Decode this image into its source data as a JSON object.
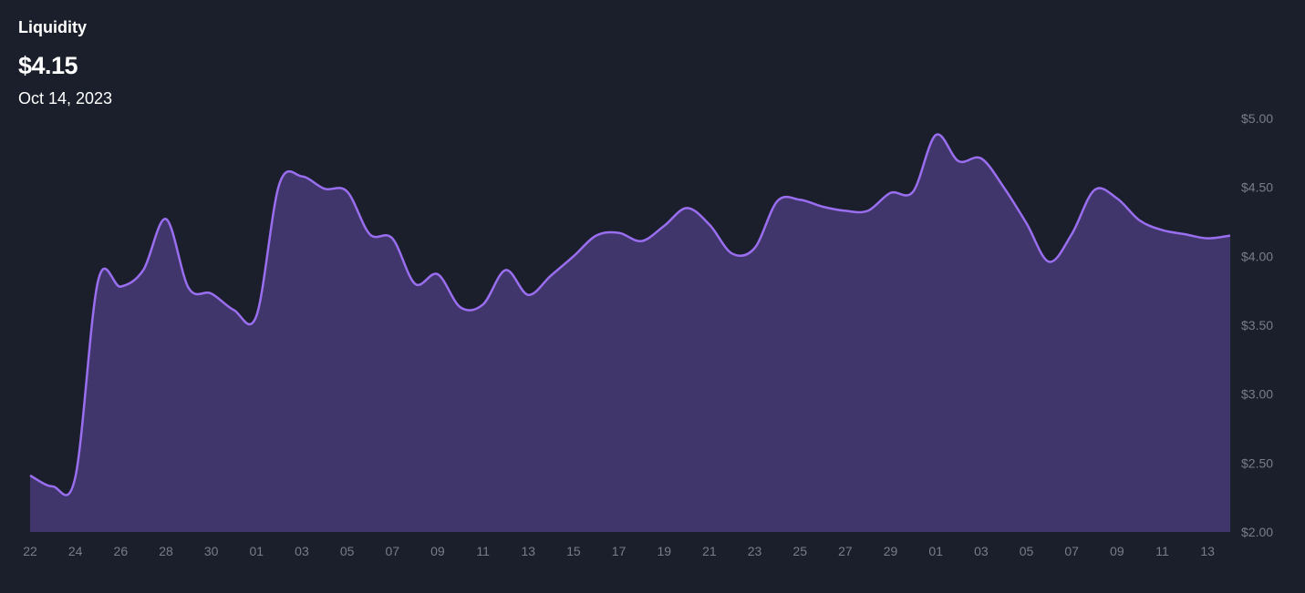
{
  "header": {
    "title": "Liquidity",
    "value": "$4.15",
    "date": "Oct 14, 2023"
  },
  "colors": {
    "background": "#1b1f2b",
    "line": "#9a6ef0",
    "area": "#41366b",
    "tick_text": "#7a7d88"
  },
  "chart_data": {
    "type": "area",
    "title": "Liquidity",
    "xlabel": "",
    "ylabel": "",
    "ylim": [
      2.0,
      5.0
    ],
    "grid": false,
    "y_ticks": [
      "$5.00",
      "$4.50",
      "$4.00",
      "$3.50",
      "$3.00",
      "$2.50",
      "$2.00"
    ],
    "y_tick_values": [
      5.0,
      4.5,
      4.0,
      3.5,
      3.0,
      2.5,
      2.0
    ],
    "x_ticks": [
      "22",
      "24",
      "26",
      "28",
      "30",
      "01",
      "03",
      "05",
      "07",
      "09",
      "11",
      "13",
      "15",
      "17",
      "19",
      "21",
      "23",
      "25",
      "27",
      "29",
      "01",
      "03",
      "05",
      "07",
      "09",
      "11",
      "13"
    ],
    "x_tick_dates": [
      "2023-08-22",
      "2023-08-24",
      "2023-08-26",
      "2023-08-28",
      "2023-08-30",
      "2023-09-01",
      "2023-09-03",
      "2023-09-05",
      "2023-09-07",
      "2023-09-09",
      "2023-09-11",
      "2023-09-13",
      "2023-09-15",
      "2023-09-17",
      "2023-09-19",
      "2023-09-21",
      "2023-09-23",
      "2023-09-25",
      "2023-09-27",
      "2023-09-29",
      "2023-10-01",
      "2023-10-03",
      "2023-10-05",
      "2023-10-07",
      "2023-10-09",
      "2023-10-11",
      "2023-10-13"
    ],
    "series": [
      {
        "x": [
          "2023-08-22",
          "2023-08-23",
          "2023-08-24",
          "2023-08-25",
          "2023-08-26",
          "2023-08-27",
          "2023-08-28",
          "2023-08-29",
          "2023-08-30",
          "2023-08-31",
          "2023-09-01",
          "2023-09-02",
          "2023-09-03",
          "2023-09-04",
          "2023-09-05",
          "2023-09-06",
          "2023-09-07",
          "2023-09-08",
          "2023-09-09",
          "2023-09-10",
          "2023-09-11",
          "2023-09-12",
          "2023-09-13",
          "2023-09-14",
          "2023-09-15",
          "2023-09-16",
          "2023-09-17",
          "2023-09-18",
          "2023-09-19",
          "2023-09-20",
          "2023-09-21",
          "2023-09-22",
          "2023-09-23",
          "2023-09-24",
          "2023-09-25",
          "2023-09-26",
          "2023-09-27",
          "2023-09-28",
          "2023-09-29",
          "2023-09-30",
          "2023-10-01",
          "2023-10-02",
          "2023-10-03",
          "2023-10-04",
          "2023-10-05",
          "2023-10-06",
          "2023-10-07",
          "2023-10-08",
          "2023-10-09",
          "2023-10-10",
          "2023-10-11",
          "2023-10-12",
          "2023-10-13",
          "2023-10-14"
        ],
        "values": [
          2.41,
          2.33,
          2.4,
          3.82,
          3.78,
          3.9,
          4.27,
          3.77,
          3.73,
          3.61,
          3.57,
          4.52,
          4.58,
          4.49,
          4.47,
          4.16,
          4.13,
          3.8,
          3.87,
          3.63,
          3.65,
          3.9,
          3.72,
          3.86,
          4.0,
          4.15,
          4.17,
          4.11,
          4.22,
          4.35,
          4.23,
          4.02,
          4.06,
          4.4,
          4.41,
          4.36,
          4.33,
          4.33,
          4.46,
          4.47,
          4.88,
          4.69,
          4.71,
          4.5,
          4.24,
          3.96,
          4.16,
          4.48,
          4.42,
          4.26,
          4.19,
          4.16,
          4.13,
          4.15
        ]
      }
    ]
  }
}
